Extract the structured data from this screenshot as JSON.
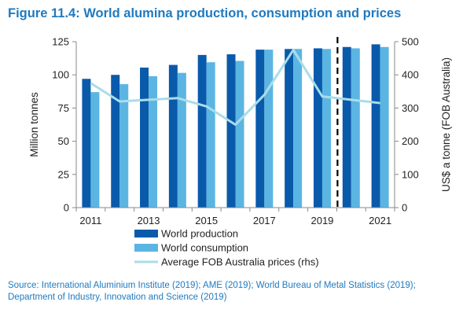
{
  "title": "Figure 11.4: World alumina production, consumption and prices",
  "source": "Source: International Aluminium Institute (2019); AME (2019); World Bureau of Metal Statistics (2019); Department of Industry, Innovation and Science (2019)",
  "colors": {
    "production": "#0a5aab",
    "consumption": "#5bb5e2",
    "price": "#a9ddea",
    "title": "#1f7ac0"
  },
  "chart_data": {
    "type": "bar",
    "categories": [
      "2011",
      "2012",
      "2013",
      "2014",
      "2015",
      "2016",
      "2017",
      "2018",
      "2019",
      "2020",
      "2021"
    ],
    "x_tick_labels": [
      "2011",
      "2013",
      "2015",
      "2017",
      "2019",
      "2021"
    ],
    "series": [
      {
        "name": "World production",
        "type": "bar",
        "axis": "left",
        "values": [
          97,
          100,
          105.5,
          107.5,
          115,
          115.5,
          119,
          119.5,
          120,
          121,
          123
        ]
      },
      {
        "name": "World consumption",
        "type": "bar",
        "axis": "left",
        "values": [
          87,
          93,
          99,
          101.5,
          109.5,
          110.5,
          119,
          119.5,
          119.5,
          120,
          121
        ]
      },
      {
        "name": "Average FOB Australia prices (rhs)",
        "type": "line",
        "axis": "right",
        "values": [
          375,
          320,
          325,
          330,
          305,
          250,
          340,
          475,
          335,
          325,
          315
        ]
      }
    ],
    "ylabel": "Million tonnes",
    "ylabel_right": "US$ a tonne (FOB Australia)",
    "ylim": [
      0,
      125
    ],
    "ylim_right": [
      0,
      500
    ],
    "y_ticks": [
      "0",
      "25",
      "50",
      "75",
      "100",
      "125"
    ],
    "y_ticks_right": [
      "0",
      "100",
      "200",
      "300",
      "400",
      "500"
    ],
    "forecast_divider_after": "2019",
    "grid": false,
    "legend_position": "bottom"
  }
}
